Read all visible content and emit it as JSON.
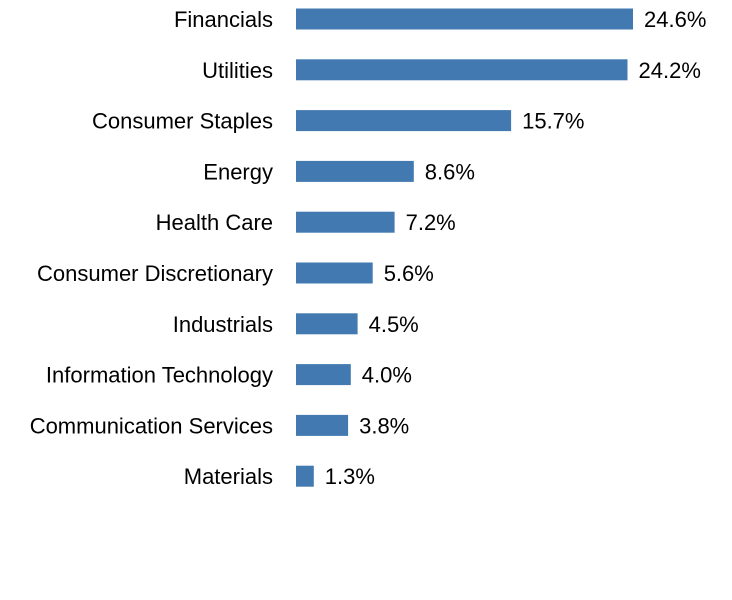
{
  "chart_data": {
    "type": "bar",
    "orientation": "horizontal",
    "categories": [
      "Financials",
      "Utilities",
      "Consumer Staples",
      "Energy",
      "Health Care",
      "Consumer Discretionary",
      "Industrials",
      "Information Technology",
      "Communication Services",
      "Materials"
    ],
    "values": [
      24.6,
      24.2,
      15.7,
      8.6,
      7.2,
      5.6,
      4.5,
      4.0,
      3.8,
      1.3
    ],
    "value_labels": [
      "24.6%",
      "24.2%",
      "15.7%",
      "8.6%",
      "7.2%",
      "5.6%",
      "4.5%",
      "4.0%",
      "3.8%",
      "1.3%"
    ],
    "title": "",
    "xlabel": "",
    "ylabel": "",
    "xlim": [
      0,
      24.6
    ],
    "grid": false,
    "legend": "none",
    "bar_color": "#4279b0"
  }
}
